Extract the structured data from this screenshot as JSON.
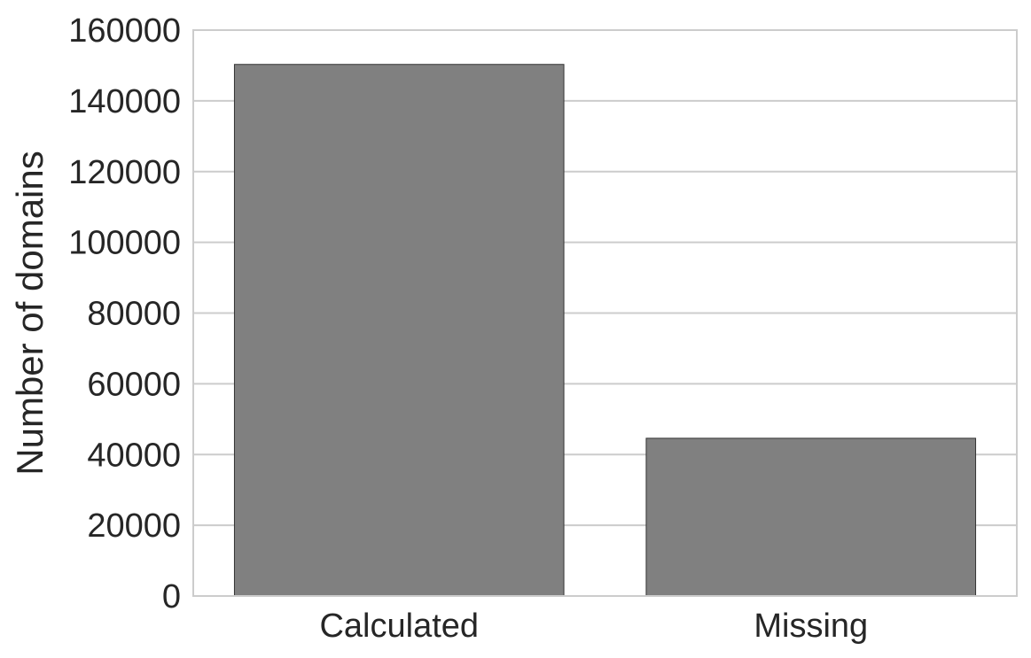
{
  "chart_data": {
    "type": "bar",
    "title": "",
    "xlabel": "",
    "ylabel": "Number of domains",
    "categories": [
      "Calculated",
      "Missing"
    ],
    "values": [
      150300,
      44600
    ],
    "ylim": [
      0,
      160000
    ],
    "yticks": [
      0,
      20000,
      40000,
      60000,
      80000,
      100000,
      120000,
      140000,
      160000
    ],
    "ytick_labels": [
      "0",
      "20000",
      "40000",
      "60000",
      "80000",
      "100000",
      "120000",
      "140000",
      "160000"
    ],
    "grid": true,
    "grid_axis": "y",
    "legend": "none",
    "colors": {
      "bar": "#808080",
      "bar_edge": "#333333",
      "grid": "#cccccc",
      "text": "#262626"
    }
  }
}
